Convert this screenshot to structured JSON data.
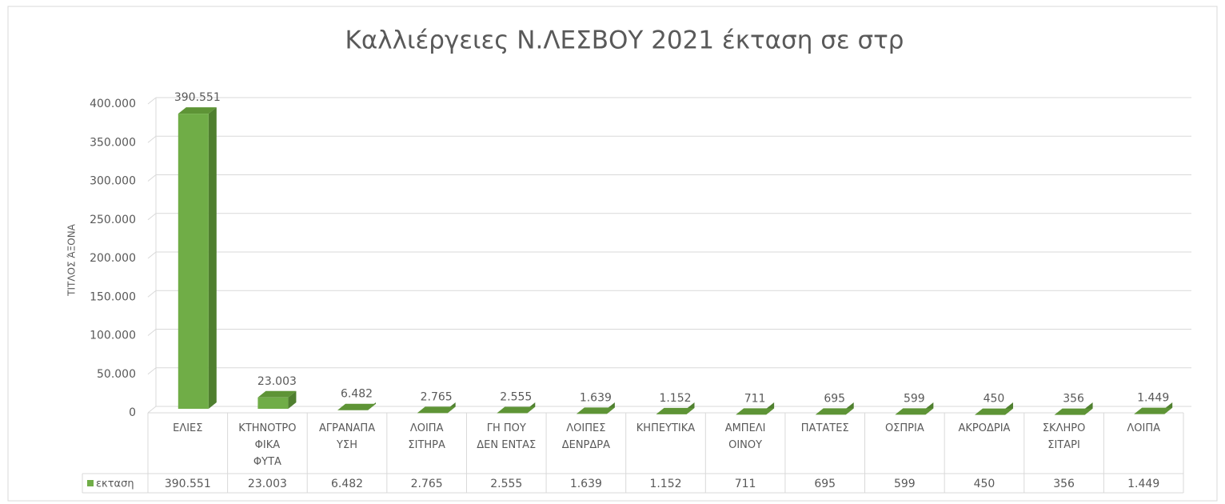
{
  "chart_data": {
    "type": "bar3d",
    "title": "Καλλιέργειες  Ν.ΛΕΣΒΟΥ 2021  έκταση σε στρ",
    "y_label": "ΤΙΤΛΟΣ ΆΞΟΝΑ",
    "categories": [
      "ΕΛΙΕΣ",
      "ΚΤΗΝΟΤΡΟ\nΦΙΚΑ\nΦΥΤΑ",
      "ΑΓΡΑΝΑΠΑ\nΥΣΗ",
      "ΛΟΙΠΑ\nΣΙΤΗΡΑ",
      "ΓΗ ΠΟΥ\nΔΕΝ ΕΝΤΑΣ",
      "ΛΟΙΠΕΣ\nΔΕΝΡΔΡΑ",
      "ΚΗΠΕΥΤΙΚΑ",
      "ΑΜΠΕΛΙ\nΟΙΝΟΥ",
      "ΠΑΤΑΤΕΣ",
      "ΟΣΠΡΙΑ",
      "ΑΚΡΟΔΡΙΑ",
      "ΣΚΛΗΡΟ\nΣΙΤΑΡΙ",
      "ΛΟΙΠΑ"
    ],
    "series": [
      {
        "name": "εκταση",
        "color": "#70ad47",
        "values": [
          390551,
          23003,
          6482,
          2765,
          2555,
          1639,
          1152,
          711,
          695,
          599,
          450,
          356,
          1449
        ],
        "value_labels": [
          "390.551",
          "23.003",
          "6.482",
          "2.765",
          "2.555",
          "1.639",
          "1.152",
          "711",
          "695",
          "599",
          "450",
          "356",
          "1.449"
        ]
      }
    ],
    "ylim": [
      0,
      400000
    ],
    "yticks": [
      0,
      {
        "value": 50000,
        "label": "50.000"
      },
      {
        "value": 100000,
        "label": "100.000"
      },
      {
        "value": 150000,
        "label": "150.000"
      },
      {
        "value": 200000,
        "label": "200.000"
      },
      {
        "value": 250000,
        "label": "250.000"
      },
      {
        "value": 300000,
        "label": "300.000"
      },
      {
        "value": 350000,
        "label": "350.000"
      },
      {
        "value": 400000,
        "label": "400.000"
      }
    ],
    "grid": true,
    "data_table": true
  }
}
